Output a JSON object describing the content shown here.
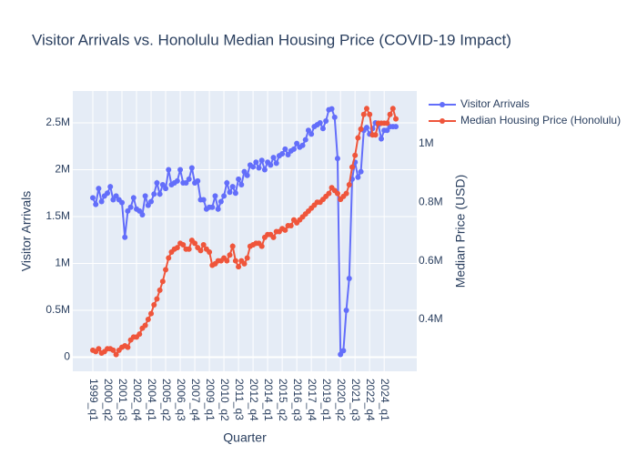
{
  "chart_data": {
    "type": "line",
    "title": "Visitor Arrivals vs. Honolulu Median Housing Price (COVID-19 Impact)",
    "x_label": "Quarter",
    "y_label": "Visitor Arrivals",
    "y2_label": "Median Price (USD)",
    "categories": [
      "1999_q1",
      "1999_q2",
      "1999_q3",
      "1999_q4",
      "2000_q1",
      "2000_q2",
      "2000_q3",
      "2000_q4",
      "2001_q1",
      "2001_q2",
      "2001_q3",
      "2001_q4",
      "2002_q1",
      "2002_q2",
      "2002_q3",
      "2002_q4",
      "2003_q1",
      "2003_q2",
      "2003_q3",
      "2003_q4",
      "2004_q1",
      "2004_q2",
      "2004_q3",
      "2004_q4",
      "2005_q1",
      "2005_q2",
      "2005_q3",
      "2005_q4",
      "2006_q1",
      "2006_q2",
      "2006_q3",
      "2006_q4",
      "2007_q1",
      "2007_q2",
      "2007_q3",
      "2007_q4",
      "2008_q1",
      "2008_q2",
      "2008_q3",
      "2008_q4",
      "2009_q1",
      "2009_q2",
      "2009_q3",
      "2009_q4",
      "2010_q1",
      "2010_q2",
      "2010_q3",
      "2010_q4",
      "2011_q1",
      "2011_q2",
      "2011_q3",
      "2011_q4",
      "2012_q1",
      "2012_q2",
      "2012_q3",
      "2012_q4",
      "2013_q1",
      "2013_q2",
      "2013_q3",
      "2013_q4",
      "2014_q1",
      "2014_q2",
      "2014_q3",
      "2014_q4",
      "2015_q1",
      "2015_q2",
      "2015_q3",
      "2015_q4",
      "2016_q1",
      "2016_q2",
      "2016_q3",
      "2016_q4",
      "2017_q1",
      "2017_q2",
      "2017_q3",
      "2017_q4",
      "2018_q1",
      "2018_q2",
      "2018_q3",
      "2018_q4",
      "2019_q1",
      "2019_q2",
      "2019_q3",
      "2019_q4",
      "2020_q1",
      "2020_q2",
      "2020_q3",
      "2020_q4",
      "2021_q1",
      "2021_q2",
      "2021_q3",
      "2021_q4",
      "2022_q1",
      "2022_q2",
      "2022_q3",
      "2022_q4",
      "2023_q1",
      "2023_q2",
      "2023_q3",
      "2023_q4",
      "2024_q1",
      "2024_q2",
      "2024_q3",
      "2024_q4",
      "2025_q1"
    ],
    "series": [
      {
        "name": "Visitor Arrivals",
        "color": "#636efa",
        "axis": "y",
        "values": [
          1700000,
          1630000,
          1800000,
          1660000,
          1720000,
          1750000,
          1820000,
          1680000,
          1720000,
          1680000,
          1650000,
          1280000,
          1560000,
          1600000,
          1700000,
          1580000,
          1560000,
          1520000,
          1720000,
          1620000,
          1660000,
          1740000,
          1860000,
          1740000,
          1840000,
          1800000,
          2000000,
          1840000,
          1860000,
          1880000,
          2000000,
          1860000,
          1860000,
          1900000,
          2020000,
          1860000,
          1880000,
          1680000,
          1680000,
          1580000,
          1600000,
          1600000,
          1720000,
          1580000,
          1660000,
          1720000,
          1860000,
          1760000,
          1820000,
          1750000,
          1900000,
          1840000,
          1980000,
          1940000,
          2050000,
          2030000,
          2080000,
          2020000,
          2100000,
          2000000,
          2080000,
          2050000,
          2130000,
          2070000,
          2150000,
          2170000,
          2220000,
          2160000,
          2200000,
          2220000,
          2280000,
          2240000,
          2260000,
          2320000,
          2420000,
          2380000,
          2460000,
          2480000,
          2500000,
          2440000,
          2520000,
          2640000,
          2650000,
          2560000,
          2120000,
          30000,
          70000,
          500000,
          840000,
          1900000,
          2080000,
          1920000,
          1980000,
          2420000,
          2450000,
          2380000,
          2440000,
          2500000,
          2480000,
          2330000,
          2420000,
          2420000,
          2460000,
          2460000,
          2460000
        ]
      },
      {
        "name": "Median Housing Price (Honolulu)",
        "color": "#ef553b",
        "axis": "y2",
        "values": [
          295000,
          290000,
          300000,
          285000,
          290000,
          300000,
          300000,
          295000,
          280000,
          295000,
          305000,
          310000,
          305000,
          330000,
          340000,
          340000,
          350000,
          370000,
          380000,
          400000,
          420000,
          450000,
          470000,
          500000,
          530000,
          570000,
          610000,
          630000,
          640000,
          645000,
          660000,
          655000,
          640000,
          640000,
          670000,
          660000,
          645000,
          635000,
          655000,
          640000,
          630000,
          585000,
          590000,
          600000,
          600000,
          610000,
          600000,
          620000,
          650000,
          600000,
          580000,
          600000,
          590000,
          610000,
          650000,
          655000,
          660000,
          660000,
          650000,
          680000,
          690000,
          690000,
          680000,
          700000,
          700000,
          710000,
          705000,
          720000,
          720000,
          740000,
          730000,
          740000,
          750000,
          760000,
          770000,
          780000,
          790000,
          800000,
          800000,
          810000,
          820000,
          830000,
          850000,
          840000,
          830000,
          810000,
          820000,
          830000,
          860000,
          920000,
          960000,
          1020000,
          1050000,
          1100000,
          1120000,
          1100000,
          1030000,
          1030000,
          1070000,
          1070000,
          1070000,
          1070000,
          1100000,
          1120000,
          1085000
        ]
      }
    ],
    "ylim": [
      -150000,
      2840000
    ],
    "yticks": [
      0,
      {
        "value": 500000,
        "label": "0.5M"
      },
      {
        "value": 1000000,
        "label": "1M"
      },
      {
        "value": 1500000,
        "label": "1.5M"
      },
      {
        "value": 2000000,
        "label": "2M"
      },
      {
        "value": 2500000,
        "label": "2.5M"
      }
    ],
    "y2lim": [
      223000,
      1180000
    ],
    "y2ticks": [
      {
        "value": 400000,
        "label": "0.4M"
      },
      {
        "value": 600000,
        "label": "0.6M"
      },
      {
        "value": 800000,
        "label": "0.8M"
      },
      {
        "value": 1000000,
        "label": "1M"
      }
    ],
    "grid": true
  }
}
